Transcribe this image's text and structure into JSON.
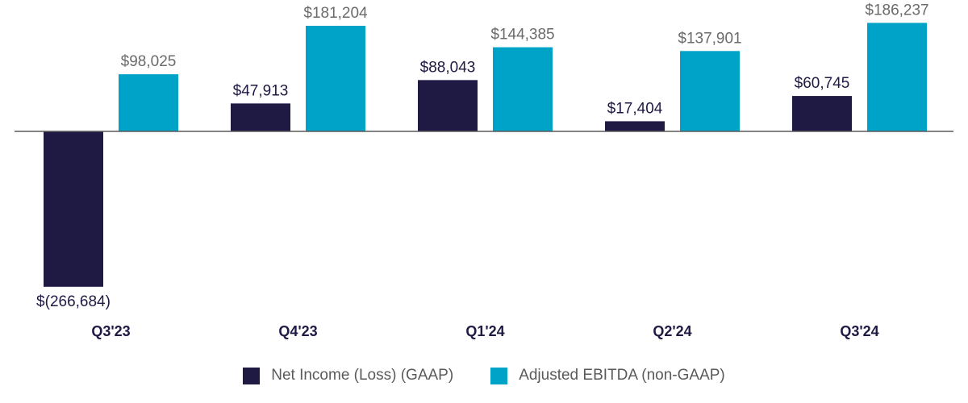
{
  "chart_data": {
    "type": "bar",
    "title": "",
    "xlabel": "",
    "ylabel": "",
    "categories": [
      "Q3'23",
      "Q4'23",
      "Q1'24",
      "Q2'24",
      "Q3'24"
    ],
    "series": [
      {
        "name": "Net Income (Loss) (GAAP)",
        "color": "#1e1a44",
        "label_color": "#1e1a44",
        "values": [
          -266684,
          47913,
          88043,
          17404,
          60745
        ],
        "labels": [
          "$(266,684)",
          "$47,913",
          "$88,043",
          "$17,404",
          "$60,745"
        ]
      },
      {
        "name": "Adjusted EBITDA (non-GAAP)",
        "color": "#00a3c8",
        "label_color": "#6b6b6b",
        "values": [
          98025,
          181204,
          144385,
          137901,
          186237
        ],
        "labels": [
          "$98,025",
          "$181,204",
          "$144,385",
          "$137,901",
          "$186,237"
        ]
      }
    ],
    "ylim": [
      -266684,
      186237
    ],
    "grid": false,
    "legend_position": "bottom-center"
  },
  "legend": {
    "items": [
      {
        "label": "Net Income (Loss) (GAAP)",
        "color": "#1e1a44"
      },
      {
        "label": "Adjusted EBITDA (non-GAAP)",
        "color": "#00a3c8"
      }
    ]
  },
  "colors": {
    "axis": "#5a5a5a"
  }
}
